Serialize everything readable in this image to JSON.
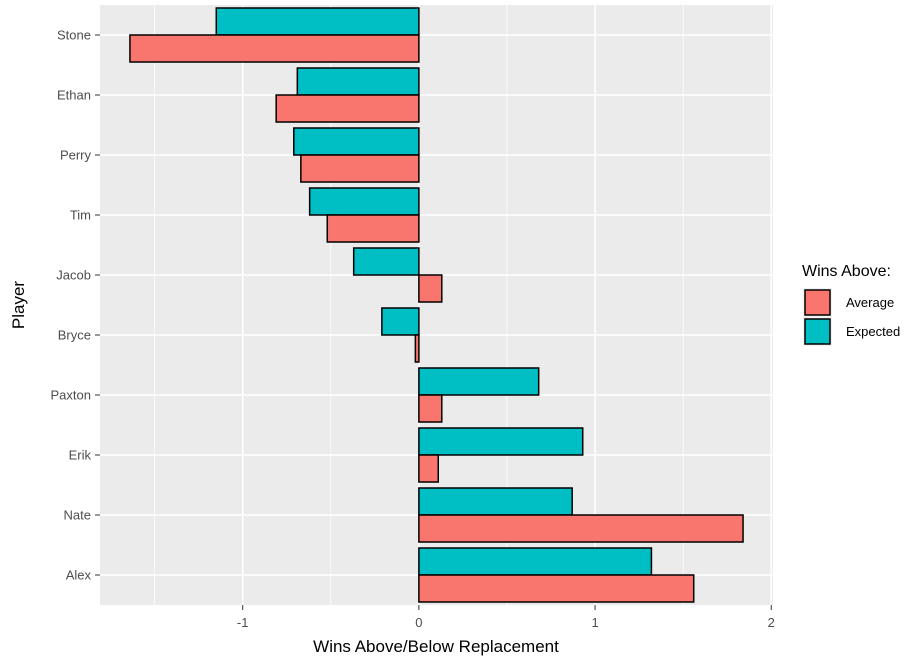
{
  "chart_data": {
    "type": "bar",
    "orientation": "horizontal",
    "categories": [
      "Stone",
      "Ethan",
      "Perry",
      "Tim",
      "Jacob",
      "Bryce",
      "Paxton",
      "Erik",
      "Nate",
      "Alex"
    ],
    "series": [
      {
        "name": "Average",
        "color": "#F8766D",
        "values": [
          -1.64,
          -0.81,
          -0.67,
          -0.52,
          0.13,
          -0.02,
          0.13,
          0.11,
          1.84,
          1.56
        ]
      },
      {
        "name": "Expected",
        "color": "#00BFC4",
        "values": [
          -1.15,
          -0.69,
          -0.71,
          -0.62,
          -0.37,
          -0.21,
          0.68,
          0.93,
          0.87,
          1.32
        ]
      }
    ],
    "xlabel": "Wins Above/Below Replacement",
    "ylabel": "Player",
    "xlim": [
      -1.81,
      2.01
    ],
    "xticks": [
      -1,
      0,
      1,
      2
    ],
    "xtick_labels": [
      "-1",
      "0",
      "1",
      "2"
    ],
    "grid": true,
    "panel_background": "#EBEBEB",
    "grid_color": "#FFFFFF",
    "legend": {
      "title": "Wins Above:",
      "position": "right",
      "items": [
        "Average",
        "Expected"
      ]
    }
  }
}
